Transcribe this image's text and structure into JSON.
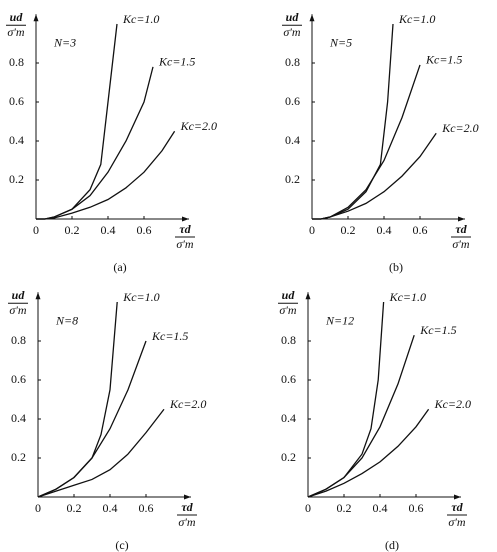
{
  "chart_data": [
    {
      "type": "line",
      "caption": "(a)",
      "annotation": "N=3",
      "x_label": {
        "numerator": "τd",
        "denominator": "σ′m"
      },
      "y_label": {
        "numerator": "ud",
        "denominator": "σ′m"
      },
      "xlim": [
        0,
        0.85
      ],
      "ylim": [
        0,
        1.05
      ],
      "xticks": [
        0,
        0.2,
        0.4,
        0.6
      ],
      "yticks": [
        0.2,
        0.4,
        0.6,
        0.8
      ],
      "series": [
        {
          "name": "Kc=1.0",
          "color": "#111111",
          "x": [
            0,
            0.05,
            0.1,
            0.2,
            0.3,
            0.36,
            0.4,
            0.45
          ],
          "values": [
            0,
            0,
            0.01,
            0.05,
            0.15,
            0.28,
            0.6,
            1.0
          ]
        },
        {
          "name": "Kc=1.5",
          "color": "#111111",
          "x": [
            0,
            0.05,
            0.1,
            0.2,
            0.3,
            0.4,
            0.5,
            0.6,
            0.65
          ],
          "values": [
            0,
            0,
            0.01,
            0.05,
            0.12,
            0.24,
            0.4,
            0.6,
            0.78
          ]
        },
        {
          "name": "Kc=2.0",
          "color": "#111111",
          "x": [
            0,
            0.05,
            0.1,
            0.2,
            0.3,
            0.4,
            0.5,
            0.6,
            0.7,
            0.77
          ],
          "values": [
            0,
            0,
            0.005,
            0.03,
            0.06,
            0.1,
            0.16,
            0.24,
            0.35,
            0.45
          ]
        }
      ]
    },
    {
      "type": "line",
      "caption": "(b)",
      "annotation": "N=5",
      "x_label": {
        "numerator": "τd",
        "denominator": "σ′m"
      },
      "y_label": {
        "numerator": "ud",
        "denominator": "σ′m"
      },
      "xlim": [
        0,
        0.85
      ],
      "ylim": [
        0,
        1.05
      ],
      "xticks": [
        0,
        0.2,
        0.4,
        0.6
      ],
      "yticks": [
        0.2,
        0.4,
        0.6,
        0.8
      ],
      "series": [
        {
          "name": "Kc=1.0",
          "color": "#111111",
          "x": [
            0,
            0.05,
            0.1,
            0.2,
            0.3,
            0.38,
            0.42,
            0.45
          ],
          "values": [
            0,
            0,
            0.01,
            0.05,
            0.14,
            0.28,
            0.6,
            1.0
          ]
        },
        {
          "name": "Kc=1.5",
          "color": "#111111",
          "x": [
            0,
            0.05,
            0.1,
            0.2,
            0.3,
            0.4,
            0.5,
            0.6
          ],
          "values": [
            0,
            0,
            0.01,
            0.06,
            0.15,
            0.3,
            0.52,
            0.79
          ]
        },
        {
          "name": "Kc=2.0",
          "color": "#111111",
          "x": [
            0,
            0.05,
            0.1,
            0.2,
            0.3,
            0.4,
            0.5,
            0.6,
            0.69
          ],
          "values": [
            0,
            0,
            0.01,
            0.04,
            0.08,
            0.14,
            0.22,
            0.32,
            0.44
          ]
        }
      ]
    },
    {
      "type": "line",
      "caption": "(c)",
      "annotation": "N=8",
      "x_label": {
        "numerator": "τd",
        "denominator": "σ′m"
      },
      "y_label": {
        "numerator": "ud",
        "denominator": "σ′m"
      },
      "xlim": [
        0,
        0.85
      ],
      "ylim": [
        0,
        1.05
      ],
      "xticks": [
        0,
        0.2,
        0.4,
        0.6
      ],
      "yticks": [
        0.2,
        0.4,
        0.6,
        0.8
      ],
      "series": [
        {
          "name": "Kc=1.0",
          "color": "#111111",
          "x": [
            0,
            0.1,
            0.2,
            0.3,
            0.35,
            0.4,
            0.44
          ],
          "values": [
            0,
            0.04,
            0.1,
            0.2,
            0.32,
            0.55,
            1.0
          ]
        },
        {
          "name": "Kc=1.5",
          "color": "#111111",
          "x": [
            0,
            0.1,
            0.2,
            0.3,
            0.4,
            0.5,
            0.6
          ],
          "values": [
            0,
            0.04,
            0.1,
            0.2,
            0.35,
            0.55,
            0.8
          ]
        },
        {
          "name": "Kc=2.0",
          "color": "#111111",
          "x": [
            0,
            0.1,
            0.2,
            0.3,
            0.4,
            0.5,
            0.6,
            0.7
          ],
          "values": [
            0,
            0.03,
            0.06,
            0.09,
            0.14,
            0.22,
            0.33,
            0.45
          ]
        }
      ]
    },
    {
      "type": "line",
      "caption": "(d)",
      "annotation": "N=12",
      "x_label": {
        "numerator": "τd",
        "denominator": "σ′m"
      },
      "y_label": {
        "numerator": "ud",
        "denominator": "σ′m"
      },
      "xlim": [
        0,
        0.85
      ],
      "ylim": [
        0,
        1.05
      ],
      "xticks": [
        0,
        0.2,
        0.4,
        0.6
      ],
      "yticks": [
        0.2,
        0.4,
        0.6,
        0.8
      ],
      "series": [
        {
          "name": "Kc=1.0",
          "color": "#111111",
          "x": [
            0,
            0.1,
            0.2,
            0.3,
            0.35,
            0.39,
            0.42
          ],
          "values": [
            0,
            0.04,
            0.1,
            0.22,
            0.35,
            0.6,
            1.0
          ]
        },
        {
          "name": "Kc=1.5",
          "color": "#111111",
          "x": [
            0,
            0.1,
            0.2,
            0.3,
            0.4,
            0.5,
            0.59
          ],
          "values": [
            0,
            0.04,
            0.1,
            0.2,
            0.36,
            0.58,
            0.83
          ]
        },
        {
          "name": "Kc=2.0",
          "color": "#111111",
          "x": [
            0,
            0.1,
            0.2,
            0.3,
            0.4,
            0.5,
            0.6,
            0.67
          ],
          "values": [
            0,
            0.03,
            0.07,
            0.12,
            0.18,
            0.26,
            0.36,
            0.45
          ]
        }
      ]
    }
  ]
}
